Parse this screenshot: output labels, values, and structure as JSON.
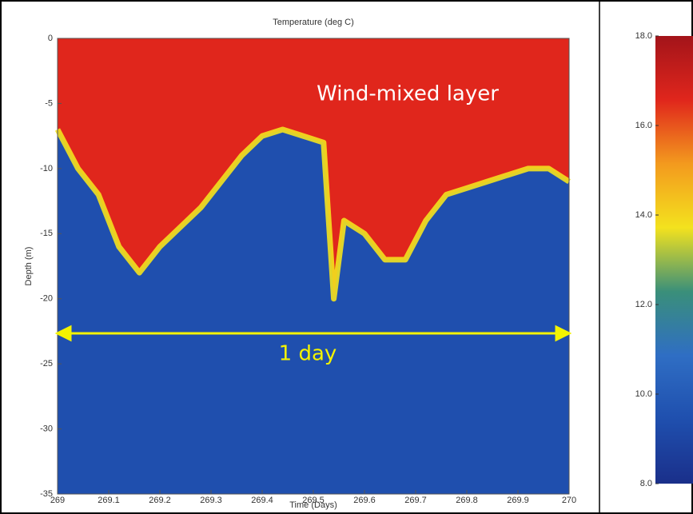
{
  "chart_data": [
    {
      "type": "area",
      "title": "Temperature (deg C)",
      "xlabel": "Time (Days)",
      "ylabel": "Depth (m)",
      "x": [
        269.0,
        269.04,
        269.08,
        269.12,
        269.16,
        269.2,
        269.24,
        269.28,
        269.32,
        269.36,
        269.4,
        269.44,
        269.48,
        269.52,
        269.54,
        269.56,
        269.6,
        269.64,
        269.68,
        269.72,
        269.76,
        269.8,
        269.84,
        269.88,
        269.92,
        269.96,
        270.0
      ],
      "values": [
        -7,
        -10,
        -12,
        -16,
        -18,
        -16,
        -14.5,
        -13,
        -11,
        -9,
        -7.5,
        -7,
        -7.5,
        -8,
        -20,
        -14,
        -15,
        -17,
        -17,
        -14,
        -12,
        -11.5,
        -11,
        -10.5,
        -10,
        -10,
        -11
      ],
      "upper_color": "#e0261c",
      "lower_color": "#1f4fae",
      "boundary_color": "#f3e21e",
      "xlim": [
        269,
        270
      ],
      "ylim": [
        -35,
        0
      ],
      "xticks": [
        269,
        269.1,
        269.2,
        269.3,
        269.4,
        269.5,
        269.6,
        269.7,
        269.8,
        269.9,
        270
      ],
      "yticks": [
        0,
        -5,
        -10,
        -15,
        -20,
        -25,
        -30,
        -35
      ],
      "annotations": [
        "Wind-mixed layer",
        "1 day"
      ]
    },
    {
      "type": "colorbar",
      "ylim": [
        8,
        18
      ],
      "yticks": [
        {
          "value": 18,
          "label": "18.0"
        },
        {
          "value": 16,
          "label": "16.0"
        },
        {
          "value": 14,
          "label": "14.0"
        },
        {
          "value": 12,
          "label": "12.0"
        },
        {
          "value": 10,
          "label": "10.0"
        },
        {
          "value": 8,
          "label": "8.0"
        }
      ],
      "colormap": [
        "#1a2f8a",
        "#1f4fae",
        "#2f6ec4",
        "#3a8f7a",
        "#f3e21e",
        "#f39a1e",
        "#e0261c",
        "#a3141a"
      ]
    }
  ]
}
